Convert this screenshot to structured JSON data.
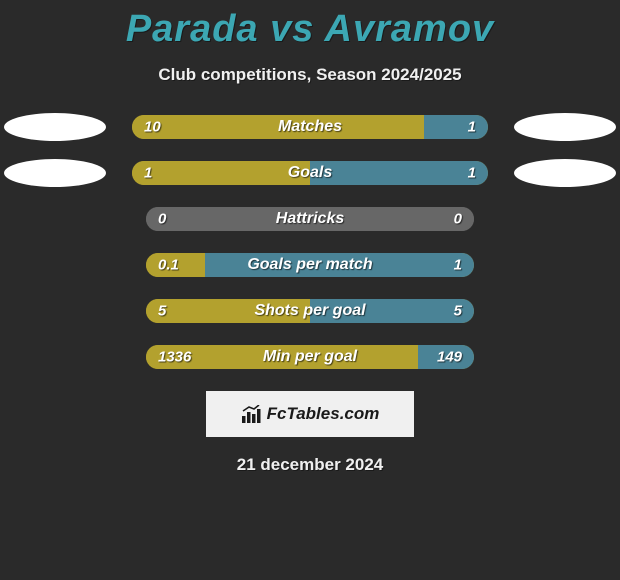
{
  "title": "Parada vs Avramov",
  "subtitle": "Club competitions, Season 2024/2025",
  "date": "21 december 2024",
  "logo_text": "FcTables.com",
  "colors": {
    "left_bar": "#b3a12e",
    "right_bar": "#4a8396",
    "neutral_bar": "#676767",
    "bg": "#2a2a2a",
    "title": "#3ca7b3"
  },
  "stats": [
    {
      "label": "Matches",
      "left_val": "10",
      "right_val": "1",
      "left_pct": 82,
      "right_pct": 18,
      "show_ovals": true
    },
    {
      "label": "Goals",
      "left_val": "1",
      "right_val": "1",
      "left_pct": 50,
      "right_pct": 50,
      "show_ovals": true
    },
    {
      "label": "Hattricks",
      "left_val": "0",
      "right_val": "0",
      "left_pct": 100,
      "right_pct": 0,
      "neutral": true,
      "show_ovals": false
    },
    {
      "label": "Goals per match",
      "left_val": "0.1",
      "right_val": "1",
      "left_pct": 18,
      "right_pct": 82,
      "show_ovals": false
    },
    {
      "label": "Shots per goal",
      "left_val": "5",
      "right_val": "5",
      "left_pct": 50,
      "right_pct": 50,
      "show_ovals": false
    },
    {
      "label": "Min per goal",
      "left_val": "1336",
      "right_val": "149",
      "left_pct": 83,
      "right_pct": 17,
      "show_ovals": false
    }
  ]
}
